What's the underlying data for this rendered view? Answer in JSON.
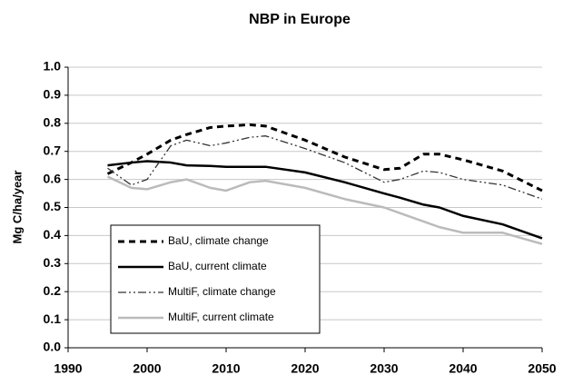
{
  "chart_data": {
    "type": "line",
    "title": "NBP in Europe",
    "y_label": "Mg C/ha/year",
    "x": [
      1995,
      1998,
      2000,
      2003,
      2005,
      2008,
      2010,
      2013,
      2015,
      2020,
      2025,
      2030,
      2032,
      2035,
      2037,
      2040,
      2045,
      2050
    ],
    "series": [
      {
        "name": "BaU, climate change",
        "color": "#000000",
        "style": "dashed",
        "values": [
          0.62,
          0.66,
          0.69,
          0.74,
          0.76,
          0.785,
          0.79,
          0.795,
          0.79,
          0.74,
          0.68,
          0.635,
          0.64,
          0.69,
          0.69,
          0.67,
          0.63,
          0.56
        ]
      },
      {
        "name": "BaU, current climate",
        "color": "#000000",
        "style": "solid",
        "values": [
          0.65,
          0.66,
          0.665,
          0.66,
          0.65,
          0.648,
          0.645,
          0.645,
          0.645,
          0.625,
          0.59,
          0.55,
          0.535,
          0.51,
          0.5,
          0.47,
          0.44,
          0.39
        ]
      },
      {
        "name": "MultiF, climate change",
        "color": "#333333",
        "style": "dash-dot-dot",
        "values": [
          0.64,
          0.58,
          0.6,
          0.72,
          0.74,
          0.72,
          0.73,
          0.75,
          0.755,
          0.71,
          0.66,
          0.59,
          0.6,
          0.63,
          0.625,
          0.6,
          0.58,
          0.53
        ]
      },
      {
        "name": "MultiF, current climate",
        "color": "#bbbbbb",
        "style": "solid",
        "values": [
          0.61,
          0.57,
          0.565,
          0.59,
          0.6,
          0.57,
          0.56,
          0.59,
          0.595,
          0.57,
          0.53,
          0.5,
          0.48,
          0.45,
          0.43,
          0.41,
          0.41,
          0.37
        ]
      }
    ],
    "xlim": [
      1990,
      2050
    ],
    "xticks": [
      1990,
      2000,
      2010,
      2020,
      2030,
      2040,
      2050
    ],
    "ylim": [
      0,
      1
    ],
    "yticks": [
      {
        "value": 0,
        "label": "0.0"
      },
      0.1,
      0.2,
      0.3,
      0.4,
      0.5,
      0.6,
      0.7,
      0.8,
      0.9,
      {
        "value": 1,
        "label": "1.0"
      }
    ],
    "grid": true
  }
}
